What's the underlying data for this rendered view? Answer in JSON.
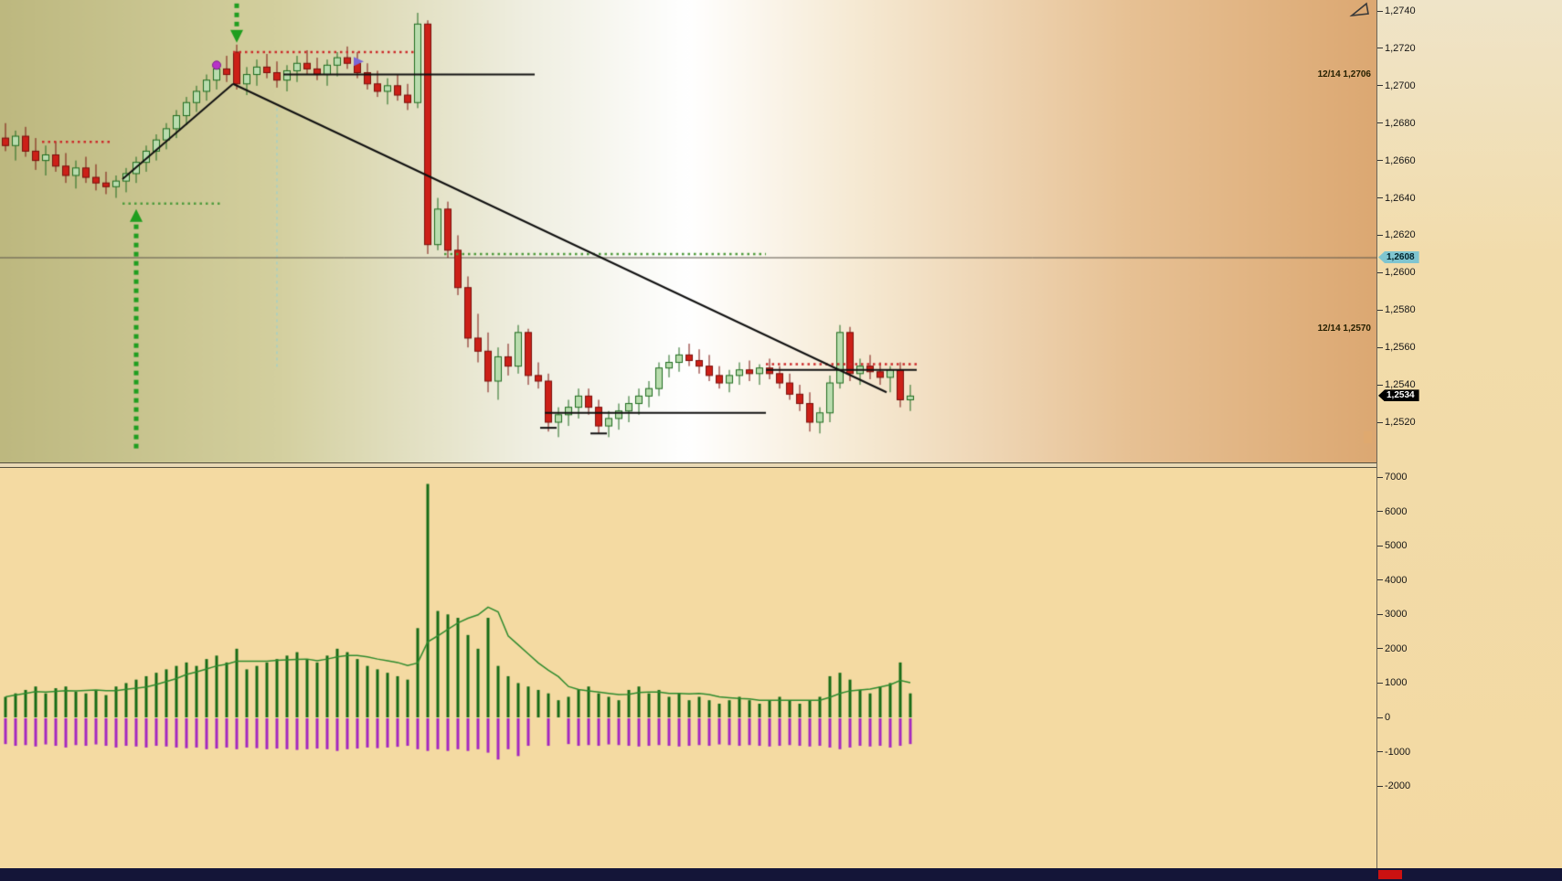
{
  "axis": {
    "price_ticks": [
      "1,2740",
      "1,2720",
      "1,2700",
      "1,2680",
      "1,2660",
      "1,2640",
      "1,2620",
      "1,2600",
      "1,2580",
      "1,2560",
      "1,2540",
      "1,2520"
    ],
    "volume_ticks": [
      "7000",
      "6000",
      "5000",
      "4000",
      "3000",
      "2000",
      "1000",
      "0",
      "-1000",
      "-2000"
    ],
    "bid_badge": "1,2608",
    "last_badge": "1,2534"
  },
  "price_panel": {
    "side_labels": [
      {
        "text": "12/14 1,2706",
        "price": 1.2706
      },
      {
        "text": "12/14 1,2570",
        "price": 1.257
      }
    ]
  },
  "colors": {
    "bull_fill": "#b9dcae",
    "bull_border": "#1e6b1e",
    "bear_fill": "#cc2018",
    "bear_border": "#7a100c",
    "vol_up": "#166b16",
    "vol_down": "#a428c0",
    "vol_ma": "#2e8b2e",
    "dotted_red": "#cc2a2a",
    "dotted_green": "#4f9b3c",
    "trend_line": "#111111",
    "arrow_green": "#1f9e1f",
    "current_price_line": "#5a544a",
    "bid_badge_bg": "#7fc5d0",
    "last_badge_bg": "#000000",
    "price_bg_left": "#bdb87f",
    "price_bg_center": "#ffffff",
    "price_bg_right": "#dca872",
    "volume_bg": "#f4daa2",
    "gap_bg": "#e9d9b5",
    "bottom_strip_bg": "#141538",
    "bottom_badge_bg": "#cc1111",
    "vline_cyan": "#8fd0d8",
    "marker_circle": "#b832c8",
    "marker_triangle": "#7b68d8"
  },
  "chart_data": {
    "type": "candlestick+volume",
    "price_axis": {
      "min": 1.252,
      "max": 1.274,
      "step": 0.002
    },
    "volume_axis": {
      "min": -2000,
      "max": 7000,
      "step": 1000
    },
    "current_price": 1.2608,
    "last_price": 1.2534,
    "candles": [
      [
        1.2672,
        1.268,
        1.2665,
        1.2668
      ],
      [
        1.2668,
        1.2676,
        1.266,
        1.2673
      ],
      [
        1.2673,
        1.2678,
        1.2662,
        1.2665
      ],
      [
        1.2665,
        1.2672,
        1.2655,
        1.266
      ],
      [
        1.266,
        1.2668,
        1.2652,
        1.2663
      ],
      [
        1.2663,
        1.267,
        1.2654,
        1.2657
      ],
      [
        1.2657,
        1.2664,
        1.2648,
        1.2652
      ],
      [
        1.2652,
        1.266,
        1.2645,
        1.2656
      ],
      [
        1.2656,
        1.2662,
        1.2648,
        1.2651
      ],
      [
        1.2651,
        1.2658,
        1.2644,
        1.2648
      ],
      [
        1.2648,
        1.2654,
        1.2642,
        1.2646
      ],
      [
        1.2646,
        1.2652,
        1.264,
        1.2649
      ],
      [
        1.2649,
        1.2656,
        1.2643,
        1.2653
      ],
      [
        1.2653,
        1.2662,
        1.2648,
        1.2659
      ],
      [
        1.2659,
        1.2668,
        1.2654,
        1.2665
      ],
      [
        1.2665,
        1.2674,
        1.266,
        1.2671
      ],
      [
        1.2671,
        1.268,
        1.2666,
        1.2677
      ],
      [
        1.2677,
        1.2687,
        1.2672,
        1.2684
      ],
      [
        1.2684,
        1.2694,
        1.2679,
        1.2691
      ],
      [
        1.2691,
        1.27,
        1.2686,
        1.2697
      ],
      [
        1.2697,
        1.2706,
        1.2692,
        1.2703
      ],
      [
        1.2703,
        1.2712,
        1.2698,
        1.2709
      ],
      [
        1.2709,
        1.2716,
        1.2702,
        1.2706
      ],
      [
        1.2718,
        1.2722,
        1.2698,
        1.2701
      ],
      [
        1.2701,
        1.271,
        1.2695,
        1.2706
      ],
      [
        1.2706,
        1.2714,
        1.27,
        1.271
      ],
      [
        1.271,
        1.2717,
        1.2704,
        1.2707
      ],
      [
        1.2707,
        1.2713,
        1.2699,
        1.2703
      ],
      [
        1.2703,
        1.2711,
        1.2697,
        1.2708
      ],
      [
        1.2708,
        1.2716,
        1.2702,
        1.2712
      ],
      [
        1.2712,
        1.2719,
        1.2706,
        1.2709
      ],
      [
        1.2709,
        1.2715,
        1.2703,
        1.2706
      ],
      [
        1.2706,
        1.2714,
        1.27,
        1.2711
      ],
      [
        1.2711,
        1.2718,
        1.2705,
        1.2715
      ],
      [
        1.2715,
        1.2721,
        1.2709,
        1.2712
      ],
      [
        1.2712,
        1.2718,
        1.2704,
        1.2707
      ],
      [
        1.2707,
        1.2712,
        1.2698,
        1.2701
      ],
      [
        1.2701,
        1.2708,
        1.2694,
        1.2697
      ],
      [
        1.2697,
        1.2704,
        1.269,
        1.27
      ],
      [
        1.27,
        1.2706,
        1.2692,
        1.2695
      ],
      [
        1.2695,
        1.2701,
        1.2687,
        1.2691
      ],
      [
        1.2691,
        1.2739,
        1.2688,
        1.2733
      ],
      [
        1.2733,
        1.2735,
        1.261,
        1.2615
      ],
      [
        1.2615,
        1.264,
        1.2612,
        1.2634
      ],
      [
        1.2634,
        1.2638,
        1.2608,
        1.2612
      ],
      [
        1.2612,
        1.262,
        1.2588,
        1.2592
      ],
      [
        1.2592,
        1.2598,
        1.256,
        1.2565
      ],
      [
        1.2565,
        1.2578,
        1.2552,
        1.2558
      ],
      [
        1.2558,
        1.2568,
        1.2536,
        1.2542
      ],
      [
        1.2542,
        1.256,
        1.2532,
        1.2555
      ],
      [
        1.2555,
        1.2562,
        1.2545,
        1.255
      ],
      [
        1.255,
        1.2572,
        1.2546,
        1.2568
      ],
      [
        1.2568,
        1.257,
        1.254,
        1.2545
      ],
      [
        1.2545,
        1.2552,
        1.2538,
        1.2542
      ],
      [
        1.2542,
        1.2546,
        1.2515,
        1.252
      ],
      [
        1.252,
        1.2528,
        1.2512,
        1.2524
      ],
      [
        1.2524,
        1.2532,
        1.2518,
        1.2528
      ],
      [
        1.2528,
        1.2538,
        1.2522,
        1.2534
      ],
      [
        1.2534,
        1.2538,
        1.2524,
        1.2528
      ],
      [
        1.2528,
        1.2532,
        1.2514,
        1.2518
      ],
      [
        1.2518,
        1.2526,
        1.2512,
        1.2522
      ],
      [
        1.2522,
        1.253,
        1.2516,
        1.2526
      ],
      [
        1.2526,
        1.2534,
        1.252,
        1.253
      ],
      [
        1.253,
        1.2538,
        1.2524,
        1.2534
      ],
      [
        1.2534,
        1.2542,
        1.2528,
        1.2538
      ],
      [
        1.2538,
        1.2552,
        1.2534,
        1.2549
      ],
      [
        1.2549,
        1.2556,
        1.2544,
        1.2552
      ],
      [
        1.2552,
        1.256,
        1.2547,
        1.2556
      ],
      [
        1.2556,
        1.2562,
        1.255,
        1.2553
      ],
      [
        1.2553,
        1.2559,
        1.2546,
        1.255
      ],
      [
        1.255,
        1.2556,
        1.2542,
        1.2545
      ],
      [
        1.2545,
        1.255,
        1.2538,
        1.2541
      ],
      [
        1.2541,
        1.2548,
        1.2536,
        1.2545
      ],
      [
        1.2545,
        1.2552,
        1.254,
        1.2548
      ],
      [
        1.2548,
        1.2553,
        1.2542,
        1.2546
      ],
      [
        1.2546,
        1.2551,
        1.254,
        1.2549
      ],
      [
        1.2549,
        1.2554,
        1.2543,
        1.2546
      ],
      [
        1.2546,
        1.255,
        1.2538,
        1.2541
      ],
      [
        1.2541,
        1.2546,
        1.2532,
        1.2535
      ],
      [
        1.2535,
        1.254,
        1.2526,
        1.253
      ],
      [
        1.253,
        1.2536,
        1.2515,
        1.252
      ],
      [
        1.252,
        1.2528,
        1.2514,
        1.2525
      ],
      [
        1.2525,
        1.2545,
        1.252,
        1.2541
      ],
      [
        1.2541,
        1.2572,
        1.2538,
        1.2568
      ],
      [
        1.2568,
        1.2571,
        1.2542,
        1.2546
      ],
      [
        1.2546,
        1.2554,
        1.254,
        1.255
      ],
      [
        1.255,
        1.2556,
        1.2543,
        1.2547
      ],
      [
        1.2547,
        1.2552,
        1.254,
        1.2544
      ],
      [
        1.2544,
        1.255,
        1.2536,
        1.2548
      ],
      [
        1.2548,
        1.2552,
        1.2528,
        1.2532
      ],
      [
        1.2532,
        1.254,
        1.2526,
        1.2534
      ]
    ],
    "volume_up": [
      600,
      700,
      800,
      900,
      700,
      850,
      900,
      750,
      700,
      800,
      650,
      900,
      1000,
      1100,
      1200,
      1300,
      1400,
      1500,
      1600,
      1500,
      1700,
      1800,
      1600,
      2000,
      1400,
      1500,
      1600,
      1700,
      1800,
      1900,
      1700,
      1600,
      1800,
      2000,
      1900,
      1700,
      1500,
      1400,
      1300,
      1200,
      1100,
      2600,
      6800,
      3100,
      3000,
      2900,
      2400,
      2000,
      2900,
      1500,
      1200,
      1000,
      900,
      800,
      700,
      500,
      600,
      800,
      900,
      700,
      600,
      500,
      800,
      900,
      700,
      800,
      600,
      700,
      500,
      600,
      500,
      400,
      500,
      600,
      500,
      400,
      500,
      600,
      500,
      400,
      500,
      600,
      1200,
      1300,
      1100,
      800,
      700,
      900,
      1000,
      1600,
      700
    ],
    "volume_down": [
      -750,
      -800,
      -780,
      -820,
      -760,
      -800,
      -850,
      -780,
      -800,
      -760,
      -800,
      -850,
      -800,
      -820,
      -850,
      -800,
      -820,
      -850,
      -870,
      -850,
      -900,
      -880,
      -850,
      -900,
      -850,
      -870,
      -900,
      -880,
      -900,
      -920,
      -900,
      -880,
      -900,
      -950,
      -900,
      -880,
      -850,
      -870,
      -850,
      -830,
      -800,
      -900,
      -950,
      -900,
      -950,
      -900,
      -950,
      -900,
      -1000,
      -1200,
      -900,
      -1100,
      -800,
      0,
      -800,
      0,
      -750,
      -800,
      -780,
      -800,
      -760,
      -780,
      -800,
      -820,
      -800,
      -780,
      -800,
      -820,
      -800,
      -780,
      -800,
      -760,
      -780,
      -800,
      -780,
      -800,
      -820,
      -800,
      -780,
      -800,
      -820,
      -800,
      -850,
      -900,
      -850,
      -800,
      -820,
      -800,
      -850,
      -800,
      -750
    ],
    "annotations": {
      "dotted_levels": [
        {
          "color": "red",
          "price": 1.267,
          "from": 4,
          "to": 11
        },
        {
          "color": "green",
          "price": 1.2637,
          "from": 12,
          "to": 22
        },
        {
          "color": "red",
          "price": 1.2718,
          "from": 23,
          "to": 41
        },
        {
          "color": "green",
          "price": 1.261,
          "from": 44,
          "to": 76
        },
        {
          "color": "red",
          "price": 1.2551,
          "from": 76,
          "to": 91
        }
      ],
      "trend_lines": [
        {
          "from": [
            28,
            1.2706
          ],
          "to": [
            53,
            1.2706
          ]
        },
        {
          "from": [
            54,
            1.2525
          ],
          "to": [
            76,
            1.2525
          ]
        },
        {
          "from": [
            76,
            1.2548
          ],
          "to": [
            91,
            1.2548
          ]
        },
        {
          "from": [
            12,
            1.265
          ],
          "to": [
            23,
            1.2701
          ]
        },
        {
          "from": [
            23,
            1.2701
          ],
          "to": [
            88,
            1.2536
          ]
        }
      ],
      "small_dashes": [
        {
          "i": 54,
          "price": 1.2517
        },
        {
          "i": 59,
          "price": 1.2514
        }
      ],
      "arrows": [
        {
          "dir": "down",
          "i": 23,
          "from_price": 1.2744,
          "to_price": 1.2723
        },
        {
          "dir": "up",
          "i": 13,
          "from_price": 1.2506,
          "to_price": 1.2634
        }
      ],
      "markers": [
        {
          "shape": "circle",
          "i": 21,
          "price": 1.2711
        },
        {
          "shape": "triangle",
          "i": 35,
          "price": 1.2713
        }
      ],
      "vline_dashed": {
        "i": 27,
        "from_price": 1.2688,
        "to_price": 1.2548
      },
      "current_price_line": {
        "price": 1.2608
      }
    },
    "volume_ma_window": 8
  }
}
